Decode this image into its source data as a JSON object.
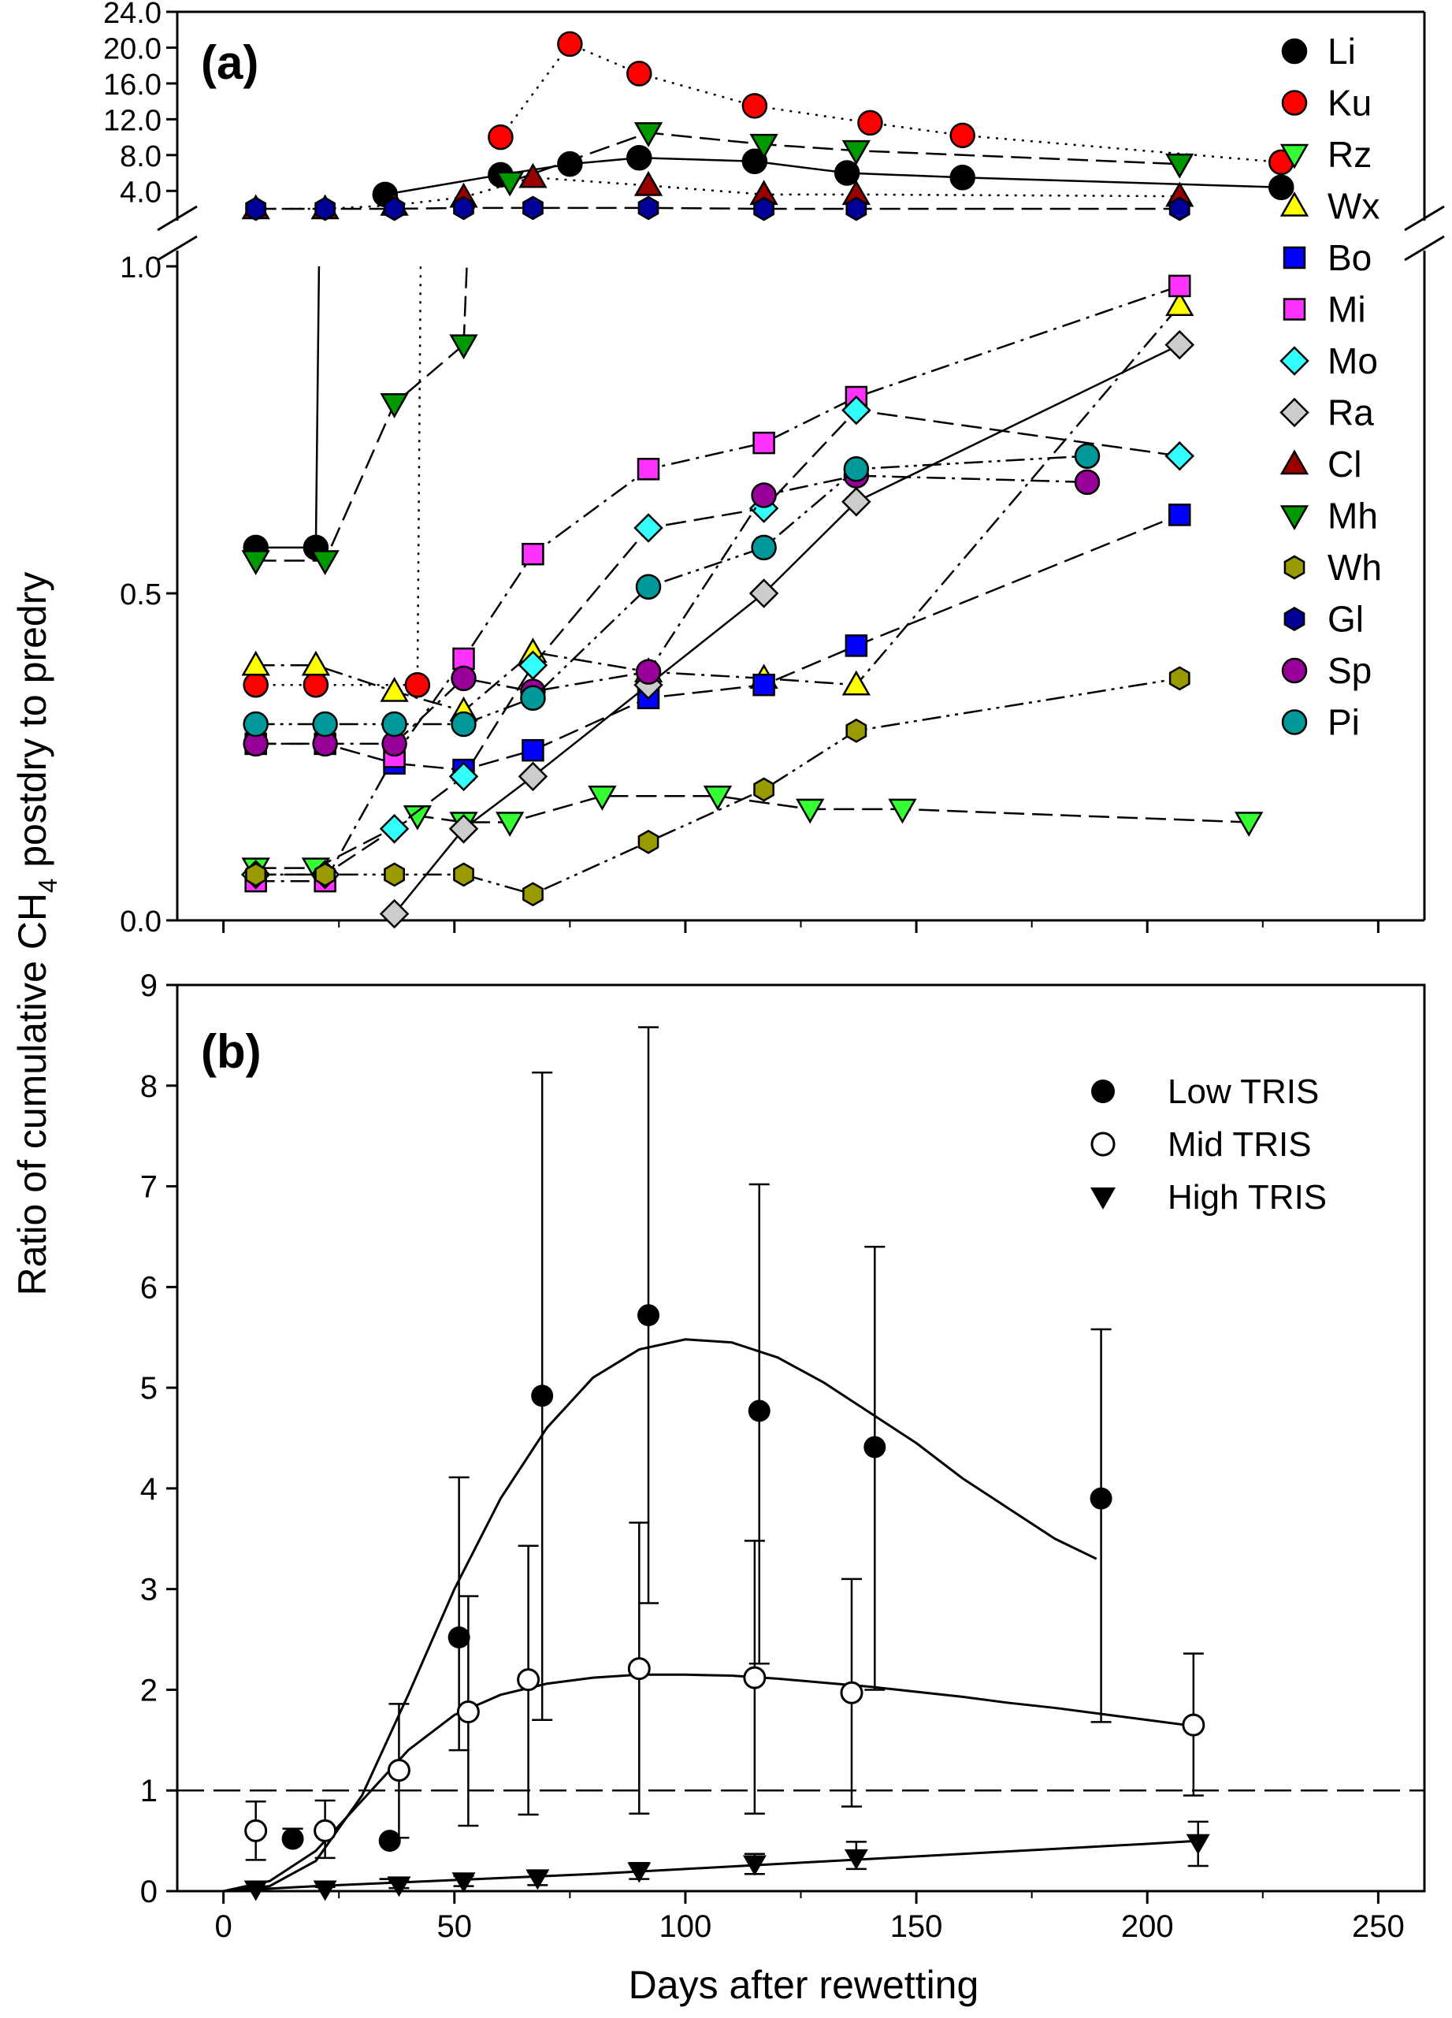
{
  "figure": {
    "ylabel_prefix": "Ratio of cumulative CH",
    "ylabel_sub": "4",
    "ylabel_suffix": " postdry to predry",
    "xlabel": "Days after rewetting"
  },
  "chart_data": [
    {
      "panel": "(a)",
      "type": "line",
      "axis": "broken",
      "title": "",
      "xlabel": "",
      "ylabel": "",
      "xlim": [
        -10,
        260
      ],
      "upper_ylim": [
        1.0,
        24.0
      ],
      "upper_ticks": [
        "4.0",
        "8.0",
        "12.0",
        "16.0",
        "20.0",
        "24.0"
      ],
      "lower_ylim": [
        0.0,
        1.0
      ],
      "lower_ticks": [
        "0.0",
        "0.5",
        "1.0"
      ],
      "x_ticks": [
        0,
        50,
        100,
        150,
        200,
        250
      ],
      "legend_position": "right",
      "series": [
        {
          "name": "Li",
          "marker": "circle",
          "color": "#000000",
          "line": "solid",
          "x": [
            7,
            20
          ],
          "y": [
            0.57,
            0.57
          ],
          "x_up": [
            35,
            60,
            75,
            90,
            115,
            135,
            160,
            229
          ],
          "y_up": [
            3.6,
            5.8,
            7.0,
            7.7,
            7.3,
            6.0,
            5.5,
            4.4
          ]
        },
        {
          "name": "Ku",
          "marker": "circle",
          "color": "#ff0000",
          "line": "dotted",
          "x": [
            7,
            20,
            42
          ],
          "y": [
            0.36,
            0.36,
            0.36
          ],
          "x_up": [
            60,
            75,
            90,
            115,
            140,
            160,
            229
          ],
          "y_up": [
            10.0,
            20.4,
            17.1,
            13.5,
            11.6,
            10.2,
            7.2
          ]
        },
        {
          "name": "Rz",
          "marker": "triangle-down",
          "color": "#33ff33",
          "line": "longdash",
          "x": [
            7,
            20,
            42,
            52,
            62,
            82,
            107,
            127,
            147,
            222
          ],
          "y": [
            0.08,
            0.08,
            0.16,
            0.15,
            0.15,
            0.19,
            0.19,
            0.17,
            0.17,
            0.15
          ]
        },
        {
          "name": "Wx",
          "marker": "triangle-up",
          "color": "#ffff00",
          "line": "dashdot",
          "x": [
            7,
            20,
            37,
            52,
            67,
            92,
            117,
            137,
            207
          ],
          "y": [
            0.39,
            0.39,
            0.35,
            0.32,
            0.41,
            0.38,
            0.37,
            0.36,
            0.94
          ]
        },
        {
          "name": "Bo",
          "marker": "square",
          "color": "#0000ff",
          "line": "longdash",
          "x": [
            7,
            22,
            37,
            52,
            67,
            92,
            117,
            137,
            207
          ],
          "y": [
            0.27,
            0.27,
            0.24,
            0.23,
            0.26,
            0.34,
            0.36,
            0.42,
            0.62
          ]
        },
        {
          "name": "Mi",
          "marker": "square",
          "color": "#ff33ff",
          "line": "dashdot",
          "x": [
            7,
            22,
            37,
            52,
            67,
            92,
            117,
            137,
            207
          ],
          "y": [
            0.06,
            0.06,
            0.25,
            0.4,
            0.56,
            0.69,
            0.73,
            0.8,
            0.97
          ]
        },
        {
          "name": "Mo",
          "marker": "diamond",
          "color": "#33ffff",
          "line": "longdash",
          "x": [
            7,
            22,
            37,
            52,
            67,
            92,
            117,
            137,
            207
          ],
          "y": [
            0.07,
            0.07,
            0.14,
            0.22,
            0.39,
            0.6,
            0.63,
            0.78,
            0.71
          ]
        },
        {
          "name": "Ra",
          "marker": "diamond",
          "color": "#cccccc",
          "line": "solid",
          "x": [
            37,
            52,
            67,
            92,
            117,
            137,
            207
          ],
          "y": [
            0.01,
            0.14,
            0.22,
            0.36,
            0.5,
            0.64,
            0.88
          ]
        },
        {
          "name": "Cl",
          "marker": "triangle-up",
          "color": "#990000",
          "line": "dotted",
          "x_up": [
            7,
            22,
            37,
            52,
            67,
            92,
            117,
            137,
            207
          ],
          "y_up": [
            2.0,
            2.0,
            2.4,
            3.3,
            5.5,
            4.6,
            3.6,
            3.6,
            3.4
          ]
        },
        {
          "name": "Mh",
          "marker": "triangle-down",
          "color": "#009900",
          "line": "longdash",
          "x": [
            7,
            22,
            37,
            52
          ],
          "y": [
            0.55,
            0.55,
            0.79,
            0.88
          ],
          "x_up": [
            62,
            92,
            117,
            137,
            207
          ],
          "y_up": [
            5.0,
            10.5,
            9.2,
            8.5,
            7.0
          ]
        },
        {
          "name": "Wh",
          "marker": "hexagon",
          "color": "#999900",
          "line": "dashdotdot",
          "x": [
            7,
            22,
            37,
            52,
            67,
            92,
            117,
            137,
            207
          ],
          "y": [
            0.07,
            0.07,
            0.07,
            0.07,
            0.04,
            0.12,
            0.2,
            0.29,
            0.37
          ]
        },
        {
          "name": "Gl",
          "marker": "hexagon",
          "color": "#000099",
          "line": "longdash",
          "x_up": [
            7,
            22,
            37,
            52,
            67,
            92,
            117,
            137,
            207
          ],
          "y_up": [
            2.0,
            2.0,
            2.0,
            2.1,
            2.1,
            2.1,
            2.0,
            2.0,
            2.0
          ]
        },
        {
          "name": "Sp",
          "marker": "circle",
          "color": "#990099",
          "line": "dashdot",
          "x": [
            7,
            22,
            37,
            52,
            67,
            92,
            117,
            137,
            187
          ],
          "y": [
            0.27,
            0.27,
            0.27,
            0.37,
            0.35,
            0.38,
            0.65,
            0.68,
            0.67
          ]
        },
        {
          "name": "Pi",
          "marker": "circle",
          "color": "#009999",
          "line": "dashdotdot",
          "x": [
            7,
            22,
            37,
            52,
            67,
            92,
            117,
            137,
            187
          ],
          "y": [
            0.3,
            0.3,
            0.3,
            0.3,
            0.34,
            0.51,
            0.57,
            0.69,
            0.71
          ]
        }
      ]
    },
    {
      "panel": "(b)",
      "type": "scatter",
      "title": "",
      "xlabel": "Days after rewetting",
      "ylabel": "",
      "xlim": [
        -10,
        260
      ],
      "ylim": [
        0,
        9
      ],
      "x_ticks": [
        0,
        50,
        100,
        150,
        200,
        250
      ],
      "y_ticks": [
        0,
        1,
        2,
        3,
        4,
        5,
        6,
        7,
        8,
        9
      ],
      "reference_line": {
        "y": 1,
        "style": "dashed"
      },
      "legend_position": "top-right",
      "series": [
        {
          "name": "Low TRIS",
          "marker": "circle-filled",
          "x": [
            15,
            36,
            51,
            69,
            92,
            116,
            141,
            190
          ],
          "y": [
            0.52,
            0.5,
            2.52,
            4.92,
            5.72,
            4.77,
            4.41,
            3.9
          ],
          "err_lo": [
            0.62,
            0.12,
            1.4,
            1.7,
            2.86,
            2.26,
            2.0,
            1.68
          ],
          "err_hi": [
            0.62,
            0.12,
            4.11,
            8.13,
            8.58,
            7.02,
            6.4,
            5.58
          ]
        },
        {
          "name": "Mid TRIS",
          "marker": "circle-open",
          "x": [
            7,
            22,
            38,
            53,
            66,
            90,
            115,
            136,
            210
          ],
          "y": [
            0.6,
            0.6,
            1.2,
            1.78,
            2.1,
            2.21,
            2.12,
            1.97,
            1.65
          ],
          "err_lo": [
            0.31,
            0.33,
            0.53,
            0.65,
            0.76,
            0.77,
            0.77,
            0.84,
            0.95
          ],
          "err_hi": [
            0.89,
            0.9,
            1.86,
            2.93,
            3.43,
            3.66,
            3.48,
            3.1,
            2.36
          ]
        },
        {
          "name": "High TRIS",
          "marker": "triangle-down-filled",
          "x": [
            7,
            22,
            38,
            52,
            68,
            90,
            115,
            137,
            211
          ],
          "y": [
            0.02,
            0.02,
            0.06,
            0.1,
            0.13,
            0.2,
            0.27,
            0.33,
            0.48
          ],
          "err_lo": [
            0.0,
            0.0,
            0.03,
            0.05,
            0.06,
            0.12,
            0.17,
            0.22,
            0.25
          ],
          "err_hi": [
            0.04,
            0.04,
            0.1,
            0.15,
            0.19,
            0.28,
            0.37,
            0.49,
            0.69
          ]
        }
      ],
      "fits": [
        {
          "series": "Low TRIS",
          "x": [
            0,
            10,
            20,
            30,
            40,
            50,
            60,
            70,
            80,
            90,
            100,
            110,
            120,
            130,
            140,
            150,
            160,
            170,
            180,
            189
          ],
          "y": [
            0.0,
            0.05,
            0.3,
            0.95,
            1.95,
            3.0,
            3.9,
            4.6,
            5.1,
            5.38,
            5.48,
            5.45,
            5.3,
            5.05,
            4.75,
            4.45,
            4.1,
            3.8,
            3.5,
            3.3
          ]
        },
        {
          "series": "Mid TRIS",
          "x": [
            0,
            10,
            20,
            30,
            40,
            50,
            60,
            70,
            80,
            90,
            100,
            110,
            120,
            130,
            140,
            150,
            160,
            170,
            180,
            190,
            200,
            210
          ],
          "y": [
            0.0,
            0.1,
            0.4,
            0.9,
            1.4,
            1.75,
            1.95,
            2.06,
            2.12,
            2.15,
            2.15,
            2.14,
            2.11,
            2.07,
            2.03,
            1.98,
            1.93,
            1.87,
            1.82,
            1.76,
            1.7,
            1.64
          ]
        },
        {
          "series": "High TRIS",
          "x": [
            0,
            20,
            40,
            60,
            80,
            100,
            120,
            140,
            160,
            180,
            200,
            211
          ],
          "y": [
            0.0,
            0.05,
            0.09,
            0.13,
            0.17,
            0.22,
            0.27,
            0.32,
            0.37,
            0.42,
            0.47,
            0.5
          ]
        }
      ]
    }
  ]
}
